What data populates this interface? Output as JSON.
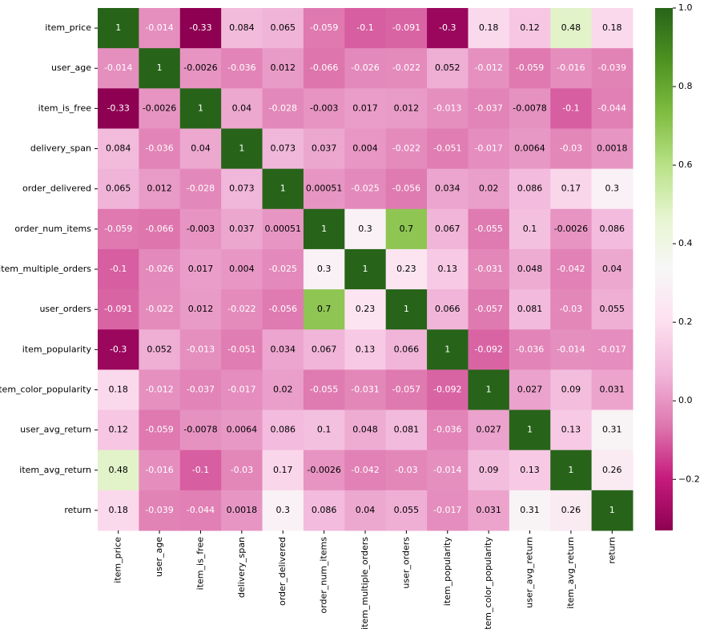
{
  "chart_data": {
    "type": "heatmap",
    "x": [
      "item_price",
      "user_age",
      "item_is_free",
      "delivery_span",
      "order_delivered",
      "order_num_items",
      "item_multiple_orders",
      "user_orders",
      "item_popularity",
      "item_color_popularity",
      "user_avg_return",
      "item_avg_return",
      "return"
    ],
    "y": [
      "item_price",
      "user_age",
      "item_is_free",
      "delivery_span",
      "order_delivered",
      "order_num_items",
      "item_multiple_orders",
      "user_orders",
      "item_popularity",
      "item_color_popularity",
      "user_avg_return",
      "item_avg_return",
      "return"
    ],
    "values": [
      [
        1,
        -0.014,
        -0.33,
        0.084,
        0.065,
        -0.059,
        -0.1,
        -0.091,
        -0.3,
        0.18,
        0.12,
        0.48,
        0.18
      ],
      [
        -0.014,
        1,
        -0.0026,
        -0.036,
        0.012,
        -0.066,
        -0.026,
        -0.022,
        0.052,
        -0.012,
        -0.059,
        -0.016,
        -0.039
      ],
      [
        -0.33,
        -0.0026,
        1,
        0.04,
        -0.028,
        -0.003,
        0.017,
        0.012,
        -0.013,
        -0.037,
        -0.0078,
        -0.1,
        -0.044
      ],
      [
        0.084,
        -0.036,
        0.04,
        1,
        0.073,
        0.037,
        0.004,
        -0.022,
        -0.051,
        -0.017,
        0.0064,
        -0.03,
        0.0018
      ],
      [
        0.065,
        0.012,
        -0.028,
        0.073,
        1,
        0.00051,
        -0.025,
        -0.056,
        0.034,
        0.02,
        0.086,
        0.17,
        0.3
      ],
      [
        -0.059,
        -0.066,
        -0.003,
        0.037,
        0.00051,
        1,
        0.3,
        0.7,
        0.067,
        -0.055,
        0.1,
        -0.0026,
        0.086
      ],
      [
        -0.1,
        -0.026,
        0.017,
        0.004,
        -0.025,
        0.3,
        1,
        0.23,
        0.13,
        -0.031,
        0.048,
        -0.042,
        0.04
      ],
      [
        -0.091,
        -0.022,
        0.012,
        -0.022,
        -0.056,
        0.7,
        0.23,
        1,
        0.066,
        -0.057,
        0.081,
        -0.03,
        0.055
      ],
      [
        -0.3,
        0.052,
        -0.013,
        -0.051,
        0.034,
        0.067,
        0.13,
        0.066,
        1,
        -0.092,
        -0.036,
        -0.014,
        -0.017
      ],
      [
        0.18,
        -0.012,
        -0.037,
        -0.017,
        0.02,
        -0.055,
        -0.031,
        -0.057,
        -0.092,
        1,
        0.027,
        0.09,
        0.031
      ],
      [
        0.12,
        -0.059,
        -0.0078,
        0.0064,
        0.086,
        0.1,
        0.048,
        0.081,
        -0.036,
        0.027,
        1,
        0.13,
        0.31
      ],
      [
        0.48,
        -0.016,
        -0.1,
        -0.03,
        0.17,
        -0.0026,
        -0.042,
        -0.03,
        -0.014,
        0.09,
        0.13,
        1,
        0.26
      ],
      [
        0.18,
        -0.039,
        -0.044,
        0.0018,
        0.3,
        0.086,
        0.04,
        0.055,
        -0.017,
        0.031,
        0.31,
        0.26,
        1
      ]
    ],
    "colormap": "PiYG",
    "zlim": [
      -0.33,
      1
    ],
    "zticks": [
      {
        "value": -0.2,
        "label": "−0.2"
      },
      {
        "value": 0,
        "label": "0.0"
      },
      {
        "value": 0.2,
        "label": "0.2"
      },
      {
        "value": 0.4,
        "label": "0.4"
      },
      {
        "value": 0.6,
        "label": "0.6"
      },
      {
        "value": 0.8,
        "label": "0.8"
      },
      {
        "value": 1,
        "label": "1.0"
      }
    ]
  }
}
